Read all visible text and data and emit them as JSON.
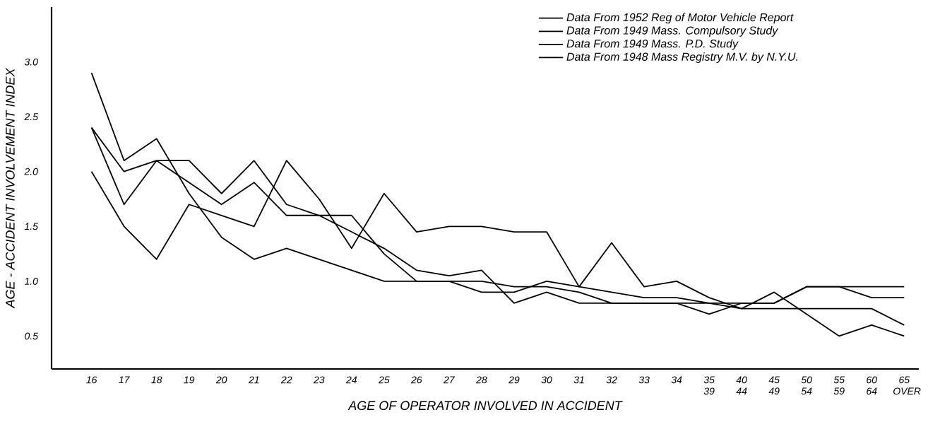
{
  "chart_data": {
    "type": "line",
    "xlabel": "AGE OF OPERATOR  INVOLVED IN ACCIDENT",
    "ylabel": "AGE - ACCIDENT INVOLVEMENT INDEX",
    "categories": [
      "16",
      "17",
      "18",
      "19",
      "20",
      "21",
      "22",
      "23",
      "24",
      "25",
      "26",
      "27",
      "28",
      "29",
      "30",
      "31",
      "32",
      "33",
      "34",
      "35 39",
      "40 44",
      "45 49",
      "50 54",
      "55 59",
      "60 64",
      "65 OVER"
    ],
    "series": [
      {
        "name": "Data From 1952 Reg of Motor Vehicle Report",
        "color": "#000000",
        "values": [
          2.9,
          2.1,
          2.3,
          1.8,
          1.4,
          1.2,
          1.3,
          1.2,
          1.1,
          1.0,
          1.0,
          1.0,
          0.9,
          0.9,
          1.0,
          0.95,
          0.9,
          0.85,
          0.85,
          0.8,
          0.75,
          0.75,
          0.75,
          0.75,
          0.75,
          0.6
        ]
      },
      {
        "name": "Data From 1949 Mass. Compulsory Study",
        "color": "#000000",
        "values": [
          2.4,
          1.7,
          2.1,
          2.1,
          1.8,
          2.1,
          1.7,
          1.6,
          1.45,
          1.3,
          1.1,
          1.05,
          1.1,
          0.8,
          0.9,
          0.8,
          0.8,
          0.8,
          0.8,
          0.7,
          0.8,
          0.8,
          0.95,
          0.95,
          0.85,
          0.85
        ]
      },
      {
        "name": "Data From 1949 Mass. P.D. Study",
        "color": "#000000",
        "values": [
          2.4,
          2.0,
          2.1,
          1.9,
          1.7,
          1.9,
          1.6,
          1.6,
          1.6,
          1.25,
          1.0,
          1.0,
          1.0,
          0.95,
          0.95,
          0.9,
          0.8,
          0.8,
          0.8,
          0.8,
          0.8,
          0.8,
          0.95,
          0.95,
          0.95,
          0.95
        ]
      },
      {
        "name": "Data From 1948 Mass Registry M.V. by N.Y.U.",
        "color": "#000000",
        "values": [
          2.0,
          1.5,
          1.2,
          1.7,
          1.6,
          1.5,
          2.1,
          1.75,
          1.3,
          1.8,
          1.45,
          1.5,
          1.5,
          1.45,
          1.45,
          0.95,
          1.35,
          0.95,
          1.0,
          0.85,
          0.75,
          0.9,
          0.7,
          0.5,
          0.6,
          0.5
        ]
      }
    ],
    "ylim": [
      0.2,
      3.5
    ],
    "yticks": [
      0.5,
      {
        "value": 1,
        "label": "1.0"
      },
      1.5,
      {
        "value": 2,
        "label": "2.0"
      },
      2.5,
      {
        "value": 3,
        "label": "3.0"
      }
    ],
    "legend": "top right",
    "line_style": "solid"
  }
}
